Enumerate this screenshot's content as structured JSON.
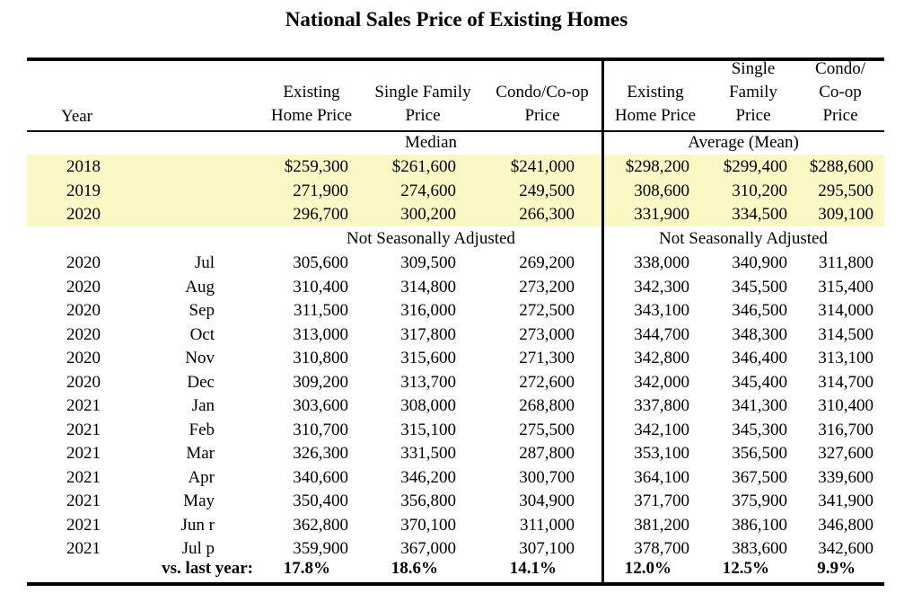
{
  "title": "National Sales Price of Existing Homes",
  "headers": {
    "year": "Year",
    "existing": [
      "Existing",
      "Home Price"
    ],
    "single_family": [
      "Single Family",
      "Price"
    ],
    "condo": [
      "Condo/Co-op",
      "Price"
    ],
    "avg_existing": [
      "Existing",
      "Home Price"
    ],
    "avg_single": [
      "Single",
      "Family",
      "Price"
    ],
    "avg_condo": [
      "Condo/",
      "Co-op",
      "Price"
    ]
  },
  "section_labels": {
    "median": "Median",
    "average": "Average (Mean)",
    "nsa_left": "Not Seasonally Adjusted",
    "nsa_right": "Not Seasonally Adjusted"
  },
  "annual_rows": [
    {
      "year": "2018",
      "vals": [
        "$259,300",
        "$261,600",
        "$241,000",
        "$298,200",
        "$299,400",
        "$288,600"
      ]
    },
    {
      "year": "2019",
      "vals": [
        "271,900",
        "274,600",
        "249,500",
        "308,600",
        "310,200",
        "295,500"
      ]
    },
    {
      "year": "2020",
      "vals": [
        "296,700",
        "300,200",
        "266,300",
        "331,900",
        "334,500",
        "309,100"
      ]
    }
  ],
  "monthly_rows": [
    {
      "year": "2020",
      "month": "Jul",
      "vals": [
        "305,600",
        "309,500",
        "269,200",
        "338,000",
        "340,900",
        "311,800"
      ]
    },
    {
      "year": "2020",
      "month": "Aug",
      "vals": [
        "310,400",
        "314,800",
        "273,200",
        "342,300",
        "345,500",
        "315,400"
      ]
    },
    {
      "year": "2020",
      "month": "Sep",
      "vals": [
        "311,500",
        "316,000",
        "272,500",
        "343,100",
        "346,500",
        "314,000"
      ]
    },
    {
      "year": "2020",
      "month": "Oct",
      "vals": [
        "313,000",
        "317,800",
        "273,000",
        "344,700",
        "348,300",
        "314,500"
      ]
    },
    {
      "year": "2020",
      "month": "Nov",
      "vals": [
        "310,800",
        "315,600",
        "271,300",
        "342,800",
        "346,400",
        "313,100"
      ]
    },
    {
      "year": "2020",
      "month": "Dec",
      "vals": [
        "309,200",
        "313,700",
        "272,600",
        "342,000",
        "345,400",
        "314,700"
      ]
    },
    {
      "year": "2021",
      "month": "Jan",
      "vals": [
        "303,600",
        "308,000",
        "268,800",
        "337,800",
        "341,300",
        "310,400"
      ]
    },
    {
      "year": "2021",
      "month": "Feb",
      "vals": [
        "310,700",
        "315,100",
        "275,500",
        "342,100",
        "345,300",
        "316,700"
      ]
    },
    {
      "year": "2021",
      "month": "Mar",
      "vals": [
        "326,300",
        "331,500",
        "287,800",
        "353,100",
        "356,500",
        "327,600"
      ]
    },
    {
      "year": "2021",
      "month": "Apr",
      "vals": [
        "340,600",
        "346,200",
        "300,700",
        "364,100",
        "367,500",
        "339,600"
      ]
    },
    {
      "year": "2021",
      "month": "May",
      "vals": [
        "350,400",
        "356,800",
        "304,900",
        "371,700",
        "375,900",
        "341,900"
      ]
    },
    {
      "year": "2021",
      "month": "Jun r",
      "vals": [
        "362,800",
        "370,100",
        "311,000",
        "381,200",
        "386,100",
        "346,800"
      ]
    },
    {
      "year": "2021",
      "month": "Jul p",
      "vals": [
        "359,900",
        "367,000",
        "307,100",
        "378,700",
        "383,600",
        "342,600"
      ]
    }
  ],
  "footer": {
    "label": "vs. last year:",
    "vals": [
      "17.8%",
      "18.6%",
      "14.1%",
      "12.0%",
      "12.5%",
      "9.9%"
    ]
  },
  "colors": {
    "highlight": "#fbf8c5",
    "rule": "#000000"
  }
}
